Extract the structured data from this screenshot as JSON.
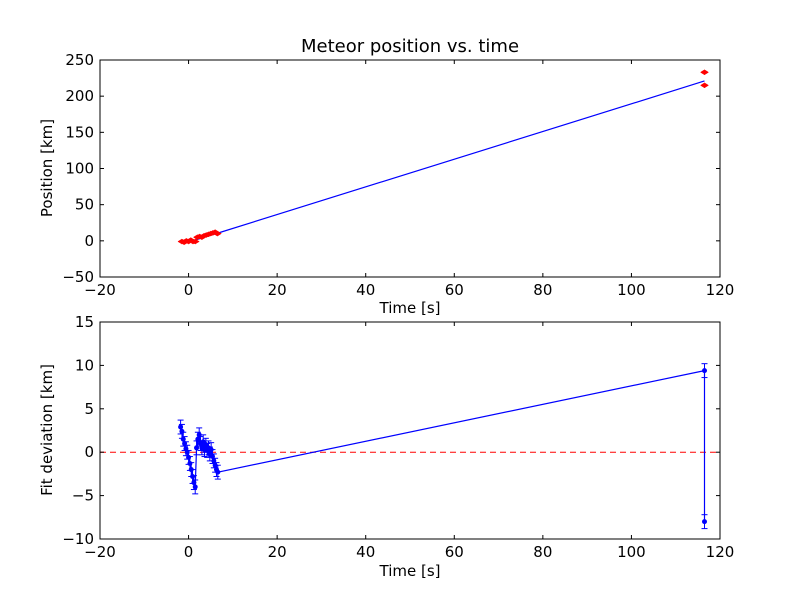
{
  "chart_data": [
    {
      "type": "line",
      "title": "Meteor position vs. time",
      "xlabel": "Time [s]",
      "ylabel": "Position [km]",
      "xlim": [
        -20,
        120
      ],
      "ylim": [
        -50,
        250
      ],
      "xticks": [
        "−20",
        "0",
        "20",
        "40",
        "60",
        "80",
        "100",
        "120"
      ],
      "yticks": [
        "−50",
        "0",
        "50",
        "100",
        "150",
        "200",
        "250"
      ],
      "grid": false,
      "series": [
        {
          "role": "fit-line",
          "color": "#0000ff",
          "x": [
            -1.5,
            0,
            1.5,
            3,
            4.5,
            6.5,
            116.5
          ],
          "y": [
            -1.5,
            -0.5,
            1,
            4,
            7,
            10.5,
            221
          ]
        },
        {
          "role": "observations",
          "color": "#ff0000",
          "x": [
            -1.5,
            -1.0,
            -0.5,
            0.0,
            0.5,
            1.0,
            1.5,
            2.0,
            2.5,
            3.0,
            3.5,
            4.0,
            4.5,
            5.0,
            5.5,
            6.0,
            6.5,
            116.5,
            116.5
          ],
          "y": [
            -1,
            -2,
            0,
            -1,
            1,
            -1,
            -1,
            5,
            6,
            5,
            7,
            8,
            9,
            10,
            11,
            12,
            10,
            233,
            215
          ]
        }
      ]
    },
    {
      "type": "line",
      "title": "",
      "xlabel": "Time [s]",
      "ylabel": "Fit deviation [km]",
      "xlim": [
        -20,
        120
      ],
      "ylim": [
        -10,
        15
      ],
      "xticks": [
        "−20",
        "0",
        "20",
        "40",
        "60",
        "80",
        "100",
        "120"
      ],
      "yticks": [
        "−10",
        "−5",
        "0",
        "5",
        "10",
        "15"
      ],
      "grid": false,
      "zero_line_color": "#ff0000",
      "series": [
        {
          "role": "residuals",
          "color": "#0000ff",
          "x": [
            -1.8,
            -1.5,
            -1.2,
            -0.9,
            -0.6,
            -0.3,
            0.0,
            0.3,
            0.6,
            0.9,
            1.2,
            1.5,
            1.8,
            2.1,
            2.4,
            2.7,
            3.0,
            3.3,
            3.6,
            3.9,
            4.2,
            4.5,
            4.8,
            5.1,
            5.4,
            5.7,
            6.0,
            6.3,
            6.6,
            116.5
          ],
          "y": [
            2.9,
            2.4,
            1.5,
            1.0,
            0.4,
            0.0,
            -0.6,
            -1.3,
            -2.0,
            -2.8,
            -3.5,
            -4.0,
            0.5,
            1.5,
            2.0,
            1.0,
            0.5,
            1.2,
            0.3,
            0.8,
            0.2,
            0.5,
            -0.2,
            0.3,
            -0.5,
            -1.0,
            -1.5,
            -2.0,
            -2.3,
            9.4
          ],
          "err": 0.8
        },
        {
          "role": "outlier",
          "color": "#0000ff",
          "x": [
            116.5
          ],
          "y": [
            -8.0
          ],
          "err": 0.8
        }
      ]
    }
  ]
}
